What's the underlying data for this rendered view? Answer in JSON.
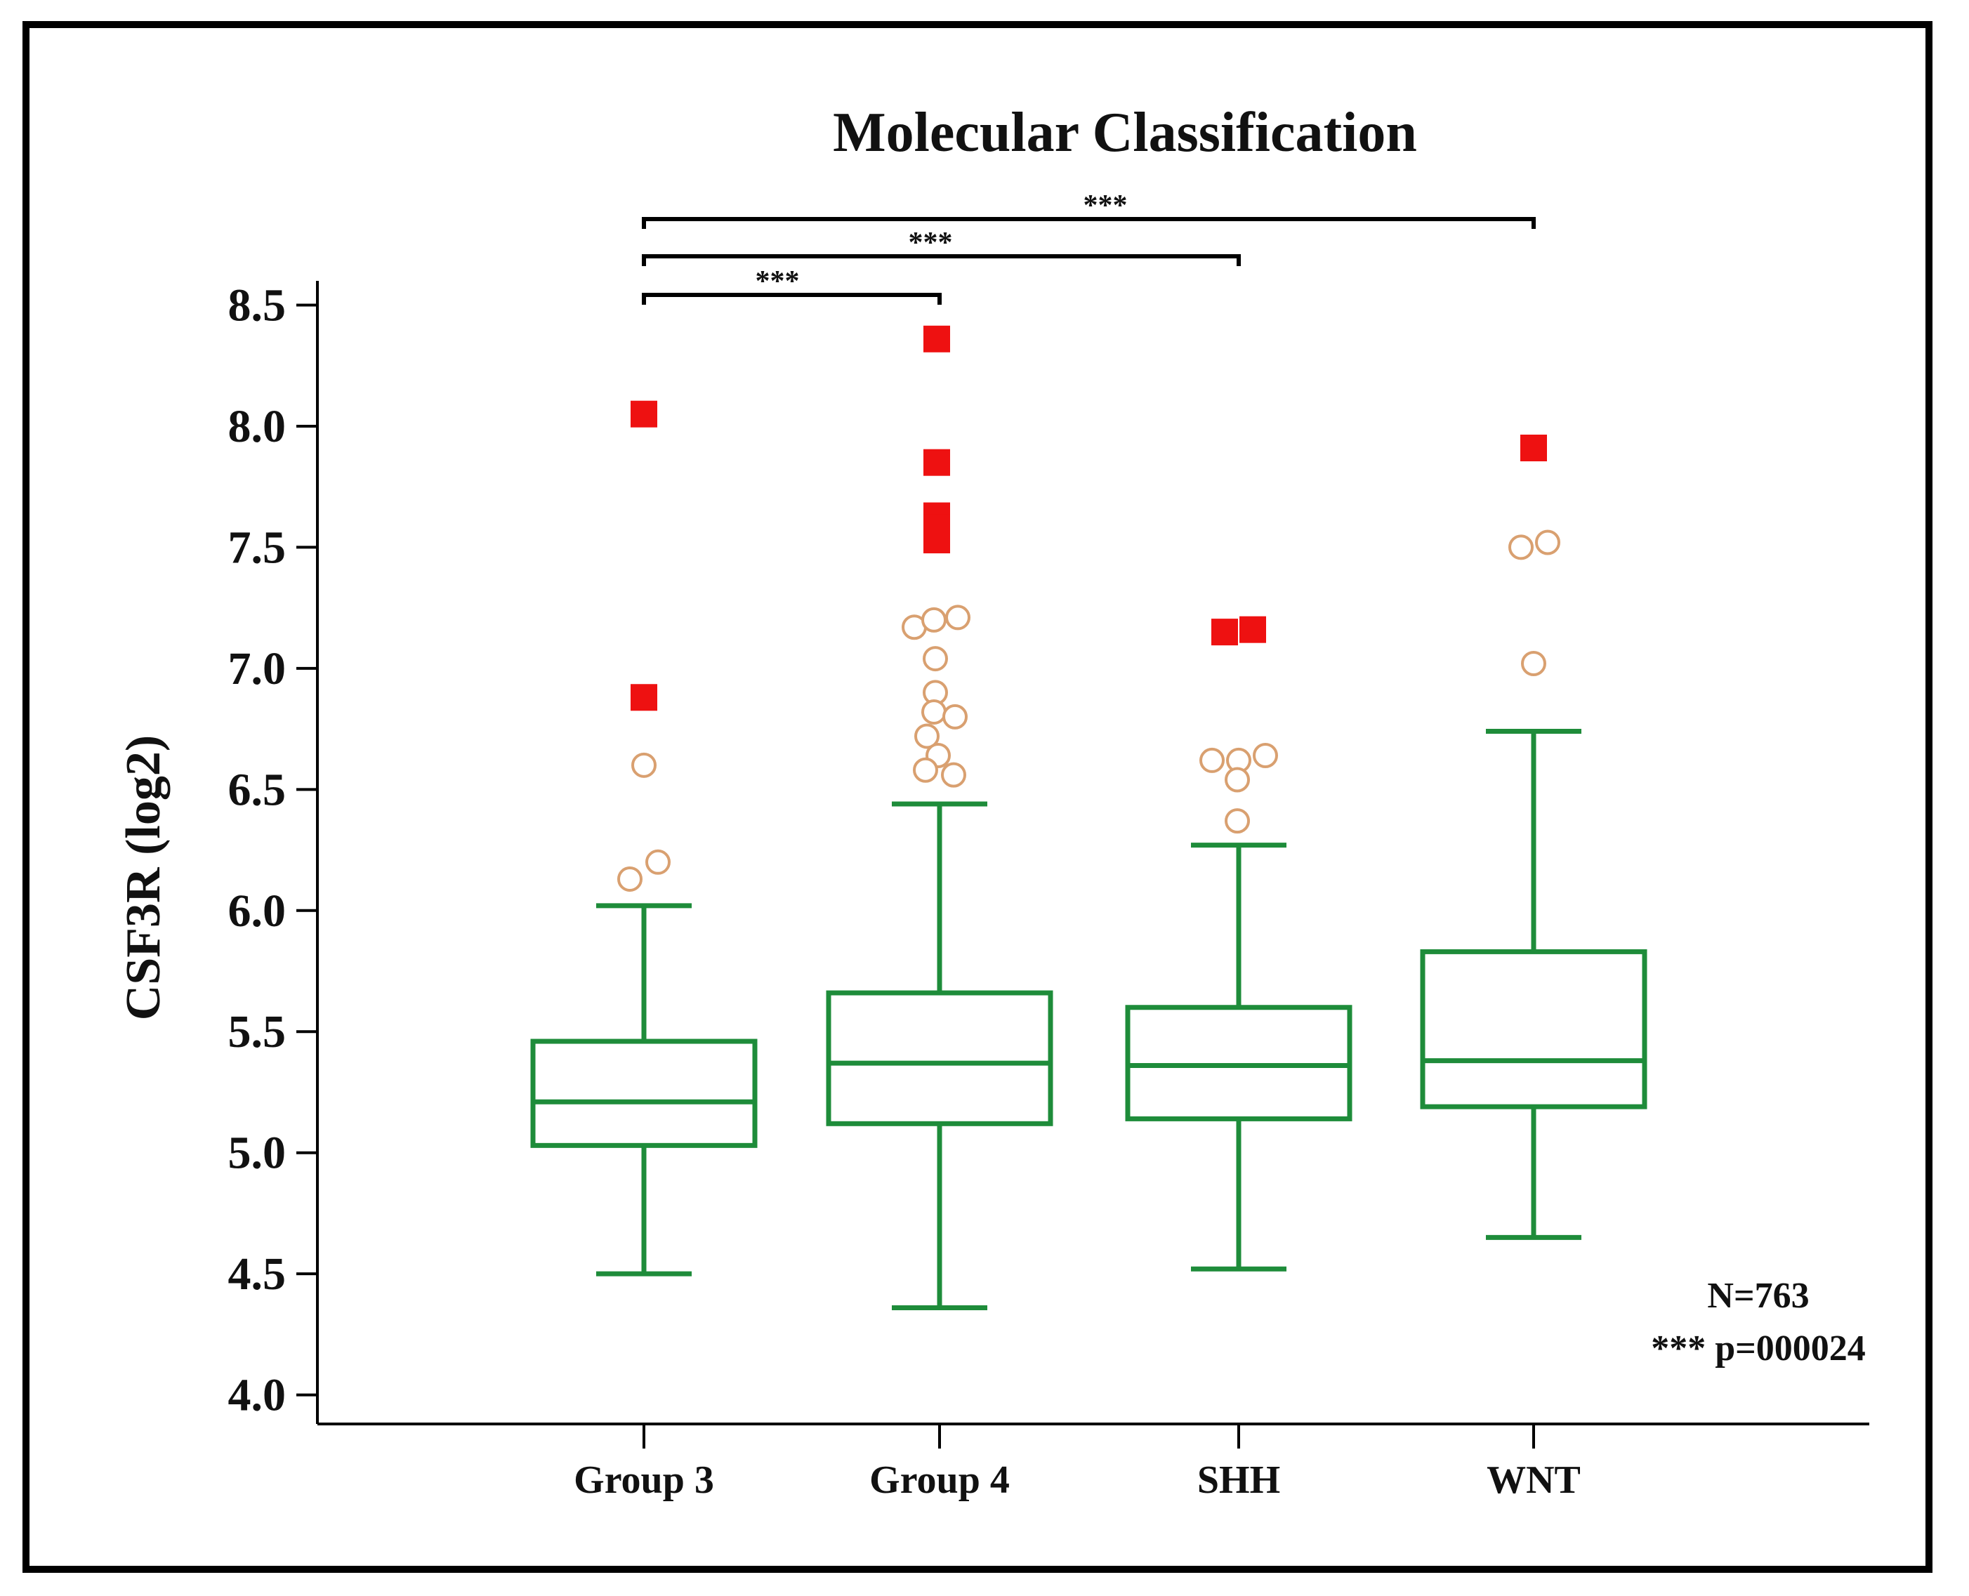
{
  "chart_data": {
    "type": "box",
    "title": "Molecular Classification",
    "xlabel": "",
    "ylabel": "CSF3R (log2)",
    "ylim": [
      4.0,
      8.6
    ],
    "yticks": [
      "4.0",
      "4.5",
      "5.0",
      "5.5",
      "6.0",
      "6.5",
      "7.0",
      "7.5",
      "8.0",
      "8.5"
    ],
    "categories": [
      "Group 3",
      "Group 4",
      "SHH",
      "WNT"
    ],
    "colors": {
      "box": "#1e8c3a",
      "outlier_stroke": "#d9a070",
      "extreme": "#ee1111",
      "axis": "#000000"
    },
    "boxes": [
      {
        "category": "Group 3",
        "whisker_low": 4.5,
        "q1": 5.03,
        "median": 5.21,
        "q3": 5.46,
        "whisker_high": 6.02,
        "outliers": [
          6.6,
          6.13,
          6.2
        ],
        "extremes": [
          8.05,
          6.88
        ]
      },
      {
        "category": "Group 4",
        "whisker_low": 4.36,
        "q1": 5.12,
        "median": 5.37,
        "q3": 5.66,
        "whisker_high": 6.44,
        "outliers": [
          7.17,
          7.2,
          7.21,
          7.04,
          6.9,
          6.82,
          6.8,
          6.72,
          6.64,
          6.56,
          6.58
        ],
        "extremes": [
          8.36,
          7.85,
          7.63,
          7.58,
          7.53
        ]
      },
      {
        "category": "SHH",
        "whisker_low": 4.52,
        "q1": 5.14,
        "median": 5.36,
        "q3": 5.6,
        "whisker_high": 6.27,
        "outliers": [
          6.62,
          6.62,
          6.64,
          6.54,
          6.37
        ],
        "extremes": [
          7.15,
          7.16
        ]
      },
      {
        "category": "WNT",
        "whisker_low": 4.65,
        "q1": 5.19,
        "median": 5.38,
        "q3": 5.83,
        "whisker_high": 6.74,
        "outliers": [
          7.5,
          7.52,
          7.02
        ],
        "extremes": [
          7.91
        ]
      }
    ],
    "significance": [
      {
        "from": "Group 3",
        "to": "Group 4",
        "label": "***"
      },
      {
        "from": "Group 3",
        "to": "SHH",
        "label": "***"
      },
      {
        "from": "Group 3",
        "to": "WNT",
        "label": "***"
      }
    ],
    "annotations": {
      "n": "N=763",
      "p": "*** p=000024"
    }
  }
}
